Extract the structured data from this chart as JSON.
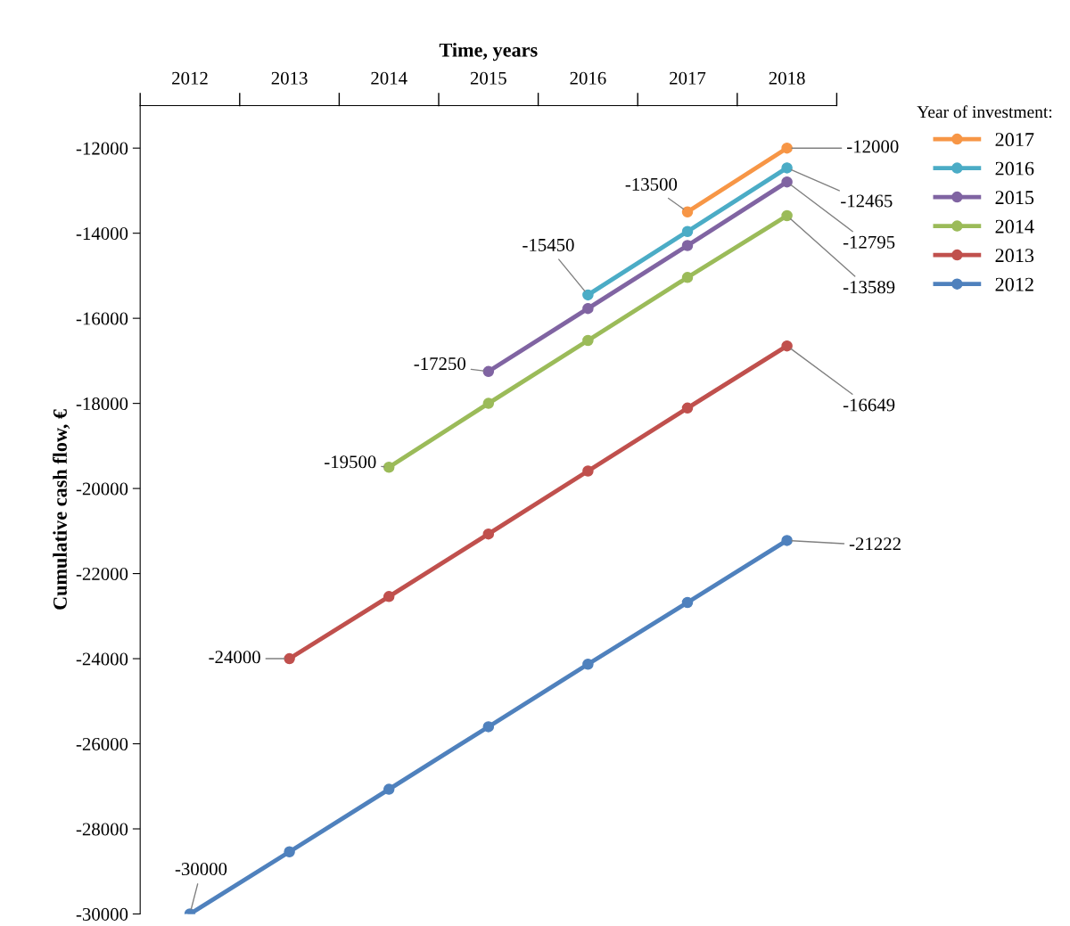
{
  "chart_data": {
    "type": "line",
    "xlabel": "Time, years",
    "ylabel": "Cumulative cash flow, €",
    "legend_title": "Year of investment:",
    "categories": [
      "2012",
      "2013",
      "2014",
      "2015",
      "2016",
      "2017",
      "2018"
    ],
    "ylim": [
      -30000,
      -11000
    ],
    "yticks": [
      -30000,
      -28000,
      -26000,
      -24000,
      -22000,
      -20000,
      -18000,
      -16000,
      -14000,
      -12000
    ],
    "grid": false,
    "legend": "right",
    "marker": "circle",
    "line_style": "solid",
    "series": [
      {
        "name": "2017",
        "color": "#f79646",
        "values": [
          null,
          null,
          null,
          null,
          null,
          -13500,
          -12000
        ]
      },
      {
        "name": "2016",
        "color": "#4bacc6",
        "values": [
          null,
          null,
          null,
          null,
          -15450,
          -13960,
          -12465
        ]
      },
      {
        "name": "2015",
        "color": "#8064a2",
        "values": [
          null,
          null,
          null,
          -17250,
          -15770,
          -14290,
          -12795
        ]
      },
      {
        "name": "2014",
        "color": "#9bbb59",
        "values": [
          null,
          null,
          -19500,
          -18000,
          -16520,
          -15040,
          -13589
        ]
      },
      {
        "name": "2013",
        "color": "#c0504d",
        "values": [
          null,
          -24000,
          -22540,
          -21070,
          -19590,
          -18110,
          -16649
        ]
      },
      {
        "name": "2012",
        "color": "#4f81bd",
        "values": [
          -30000,
          -28540,
          -27070,
          -25600,
          -24130,
          -22680,
          -21222
        ]
      }
    ],
    "annotations": [
      {
        "text": "-12000",
        "x": "2018",
        "y": -12000
      },
      {
        "text": "-12465",
        "x": "2018",
        "y": -12465
      },
      {
        "text": "-12795",
        "x": "2018",
        "y": -12795
      },
      {
        "text": "-13589",
        "x": "2018",
        "y": -13589
      },
      {
        "text": "-16649",
        "x": "2018",
        "y": -16649
      },
      {
        "text": "-21222",
        "x": "2018",
        "y": -21222
      },
      {
        "text": "-13500",
        "x": "2017",
        "y": -13500
      },
      {
        "text": "-15450",
        "x": "2016",
        "y": -15450
      },
      {
        "text": "-17250",
        "x": "2015",
        "y": -17250
      },
      {
        "text": "-19500",
        "x": "2014",
        "y": -19500
      },
      {
        "text": "-24000",
        "x": "2013",
        "y": -24000
      },
      {
        "text": "-30000",
        "x": "2012",
        "y": -30000
      }
    ]
  }
}
